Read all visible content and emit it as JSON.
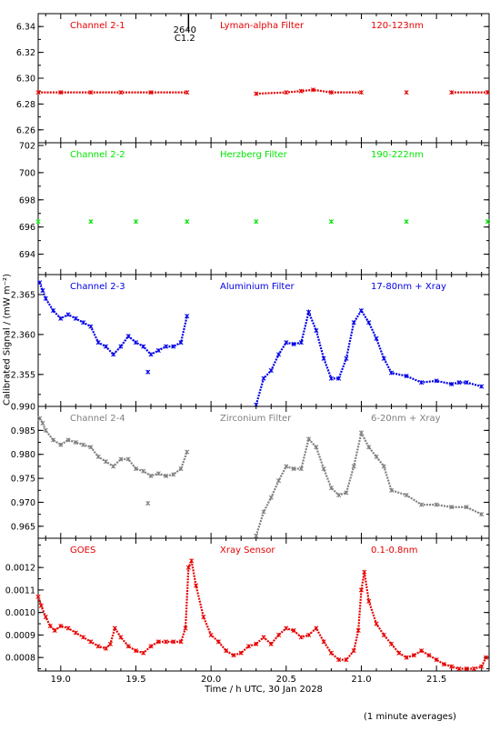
{
  "chart_data": {
    "type": "scatter",
    "title": "",
    "ylabel": "Calibrated Signal / (mW m⁻²)",
    "xlabel": "Time / h UTC, 30 Jan 2028",
    "footnote": "(1 minute averages)",
    "marker_annotation": {
      "x": 19.85,
      "labels": [
        "2640",
        "C1.2"
      ]
    },
    "x_ticks": [
      "19.0",
      "19.5",
      "20.0",
      "20.5",
      "21.0",
      "21.5"
    ],
    "xlim": [
      18.85,
      21.85
    ],
    "panels": [
      {
        "channel": "Channel 2-1",
        "filter": "Lyman-alpha Filter",
        "band": "120-123nm",
        "color": "#e60000",
        "ylim": [
          6.25,
          6.35
        ],
        "y_ticks": [
          "6.26",
          "6.28",
          "6.30",
          "6.32",
          "6.34"
        ],
        "points": [
          [
            18.85,
            6.289
          ],
          [
            19.0,
            6.289
          ],
          [
            19.2,
            6.289
          ],
          [
            19.4,
            6.289
          ],
          [
            19.6,
            6.289
          ],
          [
            19.84,
            6.289
          ],
          [
            20.3,
            6.288
          ],
          [
            20.5,
            6.289
          ],
          [
            20.6,
            6.29
          ],
          [
            20.68,
            6.291
          ],
          [
            20.8,
            6.289
          ],
          [
            21.0,
            6.289
          ],
          [
            21.3,
            6.289
          ],
          [
            21.6,
            6.289
          ],
          [
            21.84,
            6.289
          ]
        ]
      },
      {
        "channel": "Channel 2-2",
        "filter": "Herzberg Filter",
        "band": "190-222nm",
        "color": "#00e600",
        "ylim": [
          692.5,
          702.2
        ],
        "y_ticks": [
          "694",
          "696",
          "698",
          "700",
          "702"
        ],
        "points": [
          [
            18.85,
            696.4
          ],
          [
            19.2,
            696.4
          ],
          [
            19.5,
            696.4
          ],
          [
            19.84,
            696.4
          ],
          [
            20.3,
            696.4
          ],
          [
            20.8,
            696.4
          ],
          [
            21.3,
            696.4
          ],
          [
            21.84,
            696.4
          ]
        ]
      },
      {
        "channel": "Channel 2-3",
        "filter": "Aluminium Filter",
        "band": "17-80nm + Xray",
        "color": "#0000e6",
        "ylim": [
          2.351,
          2.3675
        ],
        "y_ticks": [
          "2.355",
          "2.360",
          "2.365"
        ],
        "points": [
          [
            18.86,
            2.3665
          ],
          [
            18.88,
            2.3655
          ],
          [
            18.9,
            2.3645
          ],
          [
            18.95,
            2.363
          ],
          [
            19.0,
            2.362
          ],
          [
            19.05,
            2.3625
          ],
          [
            19.1,
            2.362
          ],
          [
            19.15,
            2.3615
          ],
          [
            19.2,
            2.361
          ],
          [
            19.25,
            2.359
          ],
          [
            19.3,
            2.3585
          ],
          [
            19.35,
            2.3575
          ],
          [
            19.4,
            2.3585
          ],
          [
            19.45,
            2.3598
          ],
          [
            19.5,
            2.359
          ],
          [
            19.55,
            2.3585
          ],
          [
            19.6,
            2.3575
          ],
          [
            19.65,
            2.358
          ],
          [
            19.7,
            2.3585
          ],
          [
            19.75,
            2.3585
          ],
          [
            19.8,
            2.359
          ],
          [
            19.84,
            2.3623
          ],
          [
            19.58,
            2.3553
          ],
          [
            20.3,
            2.3512
          ],
          [
            20.35,
            2.3545
          ],
          [
            20.4,
            2.3555
          ],
          [
            20.45,
            2.3575
          ],
          [
            20.5,
            2.359
          ],
          [
            20.55,
            2.3588
          ],
          [
            20.6,
            2.359
          ],
          [
            20.65,
            2.3628
          ],
          [
            20.7,
            2.3605
          ],
          [
            20.75,
            2.357
          ],
          [
            20.8,
            2.3545
          ],
          [
            20.85,
            2.3545
          ],
          [
            20.9,
            2.357
          ],
          [
            20.95,
            2.3615
          ],
          [
            21.0,
            2.363
          ],
          [
            21.05,
            2.3615
          ],
          [
            21.1,
            2.3595
          ],
          [
            21.15,
            2.357
          ],
          [
            21.2,
            2.3552
          ],
          [
            21.3,
            2.3548
          ],
          [
            21.4,
            2.354
          ],
          [
            21.5,
            2.3542
          ],
          [
            21.6,
            2.3538
          ],
          [
            21.65,
            2.354
          ],
          [
            21.7,
            2.354
          ],
          [
            21.8,
            2.3535
          ]
        ]
      },
      {
        "channel": "Channel 2-4",
        "filter": "Zirconium Filter",
        "band": "6-20nm + Xray",
        "color": "#808080",
        "ylim": [
          0.9625,
          0.99
        ],
        "y_ticks": [
          "0.965",
          "0.970",
          "0.975",
          "0.980",
          "0.985",
          "0.990"
        ],
        "points": [
          [
            18.86,
            0.9875
          ],
          [
            18.88,
            0.9865
          ],
          [
            18.9,
            0.985
          ],
          [
            18.95,
            0.983
          ],
          [
            19.0,
            0.982
          ],
          [
            19.05,
            0.983
          ],
          [
            19.1,
            0.9825
          ],
          [
            19.15,
            0.982
          ],
          [
            19.2,
            0.9815
          ],
          [
            19.25,
            0.9795
          ],
          [
            19.3,
            0.9785
          ],
          [
            19.35,
            0.9775
          ],
          [
            19.4,
            0.979
          ],
          [
            19.45,
            0.979
          ],
          [
            19.5,
            0.977
          ],
          [
            19.55,
            0.9765
          ],
          [
            19.6,
            0.9755
          ],
          [
            19.65,
            0.976
          ],
          [
            19.7,
            0.9755
          ],
          [
            19.75,
            0.9758
          ],
          [
            19.8,
            0.977
          ],
          [
            19.84,
            0.9805
          ],
          [
            19.58,
            0.9698
          ],
          [
            20.3,
            0.963
          ],
          [
            20.35,
            0.968
          ],
          [
            20.4,
            0.971
          ],
          [
            20.45,
            0.9745
          ],
          [
            20.5,
            0.9775
          ],
          [
            20.55,
            0.977
          ],
          [
            20.6,
            0.977
          ],
          [
            20.65,
            0.9832
          ],
          [
            20.7,
            0.9815
          ],
          [
            20.75,
            0.977
          ],
          [
            20.8,
            0.973
          ],
          [
            20.85,
            0.9715
          ],
          [
            20.9,
            0.972
          ],
          [
            20.95,
            0.9775
          ],
          [
            21.0,
            0.9845
          ],
          [
            21.05,
            0.9815
          ],
          [
            21.1,
            0.9795
          ],
          [
            21.15,
            0.9775
          ],
          [
            21.2,
            0.9725
          ],
          [
            21.3,
            0.9715
          ],
          [
            21.4,
            0.9695
          ],
          [
            21.5,
            0.9695
          ],
          [
            21.6,
            0.969
          ],
          [
            21.7,
            0.969
          ],
          [
            21.8,
            0.9675
          ]
        ]
      },
      {
        "channel": "GOES",
        "filter": "Xray Sensor",
        "band": "0.1-0.8nm",
        "color": "#e60000",
        "ylim": [
          0.00074,
          0.00133
        ],
        "y_ticks": [
          "0.0008",
          "0.0009",
          "0.0010",
          "0.0011",
          "0.0012"
        ],
        "points": [
          [
            18.85,
            0.00107
          ],
          [
            18.87,
            0.00103
          ],
          [
            18.9,
            0.00098
          ],
          [
            18.93,
            0.00094
          ],
          [
            18.96,
            0.00092
          ],
          [
            19.0,
            0.00094
          ],
          [
            19.05,
            0.00093
          ],
          [
            19.1,
            0.00091
          ],
          [
            19.15,
            0.00089
          ],
          [
            19.2,
            0.00087
          ],
          [
            19.25,
            0.00085
          ],
          [
            19.3,
            0.00084
          ],
          [
            19.33,
            0.00086
          ],
          [
            19.36,
            0.00093
          ],
          [
            19.4,
            0.00089
          ],
          [
            19.45,
            0.00085
          ],
          [
            19.5,
            0.00083
          ],
          [
            19.55,
            0.00082
          ],
          [
            19.6,
            0.00085
          ],
          [
            19.65,
            0.00087
          ],
          [
            19.7,
            0.00087
          ],
          [
            19.75,
            0.00087
          ],
          [
            19.8,
            0.00087
          ],
          [
            19.83,
            0.00093
          ],
          [
            19.85,
            0.0012
          ],
          [
            19.87,
            0.00123
          ],
          [
            19.9,
            0.00112
          ],
          [
            19.95,
            0.00098
          ],
          [
            20.0,
            0.0009
          ],
          [
            20.05,
            0.00087
          ],
          [
            20.1,
            0.00083
          ],
          [
            20.15,
            0.00081
          ],
          [
            20.2,
            0.00082
          ],
          [
            20.25,
            0.00085
          ],
          [
            20.3,
            0.00086
          ],
          [
            20.35,
            0.00089
          ],
          [
            20.4,
            0.00086
          ],
          [
            20.45,
            0.0009
          ],
          [
            20.5,
            0.00093
          ],
          [
            20.55,
            0.00092
          ],
          [
            20.6,
            0.00089
          ],
          [
            20.65,
            0.0009
          ],
          [
            20.7,
            0.00093
          ],
          [
            20.75,
            0.00087
          ],
          [
            20.8,
            0.00082
          ],
          [
            20.85,
            0.00079
          ],
          [
            20.9,
            0.00079
          ],
          [
            20.95,
            0.00083
          ],
          [
            20.98,
            0.00092
          ],
          [
            21.0,
            0.0011
          ],
          [
            21.02,
            0.00118
          ],
          [
            21.05,
            0.00105
          ],
          [
            21.1,
            0.00095
          ],
          [
            21.15,
            0.0009
          ],
          [
            21.2,
            0.00086
          ],
          [
            21.25,
            0.00082
          ],
          [
            21.3,
            0.0008
          ],
          [
            21.35,
            0.00081
          ],
          [
            21.4,
            0.00083
          ],
          [
            21.45,
            0.00081
          ],
          [
            21.5,
            0.00079
          ],
          [
            21.55,
            0.00077
          ],
          [
            21.6,
            0.00076
          ],
          [
            21.65,
            0.00075
          ],
          [
            21.7,
            0.00075
          ],
          [
            21.75,
            0.00075
          ],
          [
            21.8,
            0.00076
          ],
          [
            21.83,
            0.0008
          ]
        ]
      }
    ]
  }
}
